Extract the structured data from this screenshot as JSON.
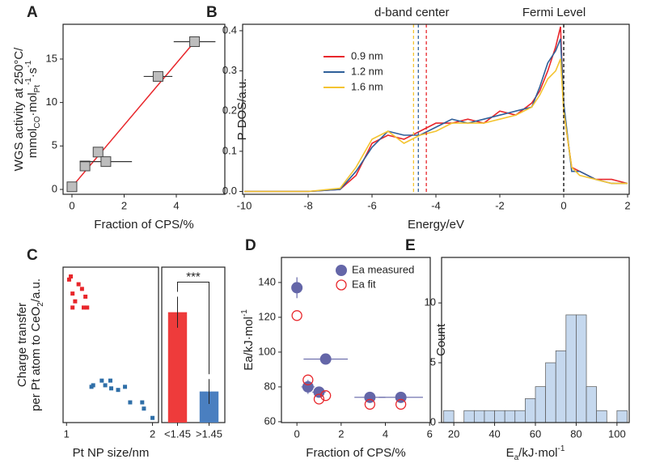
{
  "chart_data": [
    {
      "type": "scatter",
      "panel": "A",
      "xlabel": "Fraction of CPS/%",
      "ylabel": [
        [
          "WGS activity at 250°C/"
        ],
        [
          "mmol",
          "CO",
          "·mol",
          "Pt",
          "-1",
          "·s",
          "-1"
        ]
      ],
      "ylabel_format": [
        [
          ""
        ],
        [
          "",
          "sub",
          "",
          "sub",
          "super",
          "",
          "super"
        ]
      ],
      "x": [
        0,
        0.5,
        1,
        1.3,
        3.3,
        4.7
      ],
      "y": [
        0.3,
        2.7,
        4.3,
        3.2,
        13,
        17
      ],
      "xerr": [
        null,
        null,
        null,
        1.0,
        0.55,
        0.8
      ],
      "color": "#bdbdbd",
      "fit": {
        "x": [
          0,
          4.7
        ],
        "y": [
          0.3,
          17
        ],
        "color": "#e8262b"
      },
      "xlim": [
        -0.34,
        5.86
      ],
      "ylim": [
        -0.56,
        19
      ],
      "xticks": [
        0,
        2,
        4
      ],
      "yticks": [
        0,
        5,
        10,
        15
      ]
    },
    {
      "type": "line",
      "panel": "B",
      "xlabel": "Energy/eV",
      "ylabel": "P-DOS/a.u.",
      "x": [
        -10,
        -9,
        -8,
        -7,
        -6.5,
        -6,
        -5.5,
        -5,
        -4.5,
        -4,
        -3.5,
        -3,
        -2.5,
        -2,
        -1.5,
        -1,
        -0.75,
        -0.5,
        -0.25,
        -0.1,
        0,
        0.25,
        0.5,
        1,
        1.5,
        2
      ],
      "series": [
        {
          "name": "0.9 nm",
          "color": "#e8262b",
          "values": [
            0,
            0,
            0,
            0.005,
            0.04,
            0.12,
            0.14,
            0.13,
            0.15,
            0.17,
            0.17,
            0.18,
            0.17,
            0.2,
            0.19,
            0.22,
            0.25,
            0.3,
            0.36,
            0.41,
            0.2,
            0.06,
            0.05,
            0.03,
            0.03,
            0.02
          ]
        },
        {
          "name": "1.2 nm",
          "color": "#2f5f99",
          "values": [
            0,
            0,
            0,
            0.005,
            0.05,
            0.11,
            0.15,
            0.14,
            0.14,
            0.16,
            0.18,
            0.17,
            0.18,
            0.19,
            0.2,
            0.21,
            0.26,
            0.32,
            0.35,
            0.38,
            0.22,
            0.05,
            0.05,
            0.03,
            0.02,
            0.02
          ]
        },
        {
          "name": "1.6 nm",
          "color": "#f4c430",
          "values": [
            0,
            0,
            0,
            0.008,
            0.06,
            0.13,
            0.15,
            0.12,
            0.14,
            0.15,
            0.17,
            0.17,
            0.17,
            0.18,
            0.19,
            0.21,
            0.24,
            0.28,
            0.3,
            0.33,
            0.2,
            0.06,
            0.04,
            0.03,
            0.02,
            0.02
          ]
        }
      ],
      "vlines": [
        {
          "x": -4.3,
          "color": "#e8262b"
        },
        {
          "x": -4.55,
          "color": "#2f5f99"
        },
        {
          "x": -4.7,
          "color": "#f4c430"
        },
        {
          "x": 0,
          "color": "#000000"
        }
      ],
      "annotations": [
        "d-band center",
        "Fermi Level"
      ],
      "xlim": [
        -10.05,
        2.05
      ],
      "ylim": [
        -0.007,
        0.416
      ],
      "xticks": [
        -10,
        -8,
        -6,
        -4,
        -2,
        0,
        2
      ],
      "yticks": [
        {
          "value": 0,
          "label": "0.0"
        },
        0.1,
        0.2,
        0.3,
        0.4
      ]
    },
    {
      "type": "scatter",
      "panel": "C",
      "xlabel": "Pt NP size/nm",
      "ylabel": [
        [
          "Charge transfer"
        ],
        [
          "per Pt atom to CeO",
          "2",
          "/a.u."
        ]
      ],
      "ylabel_format": [
        [
          ""
        ],
        [
          "",
          "sub",
          ""
        ]
      ],
      "series": [
        {
          "color": "#e8262b",
          "x": [
            1.05,
            1.03,
            1.14,
            1.18,
            1.07,
            1.22,
            1.1,
            1.07,
            1.2,
            1.24
          ],
          "y": [
            0.94,
            0.92,
            0.89,
            0.86,
            0.83,
            0.81,
            0.78,
            0.74,
            0.74,
            0.74
          ]
        },
        {
          "color": "#2f6fa8",
          "x": [
            1.29,
            1.31,
            1.41,
            1.45,
            1.51,
            1.52,
            1.6,
            1.68,
            1.74,
            1.88,
            1.9,
            2.0
          ],
          "y": [
            0.23,
            0.24,
            0.27,
            0.24,
            0.27,
            0.22,
            0.21,
            0.23,
            0.13,
            0.13,
            0.09,
            0.03
          ]
        }
      ],
      "xlim": [
        0.96,
        2.07
      ],
      "ylim": [
        0,
        1
      ],
      "xticks": [
        1,
        2
      ]
    },
    {
      "type": "bar",
      "categories": [
        "<1.45",
        ">1.45"
      ],
      "values": [
        0.71,
        0.2
      ],
      "errors": [
        0.1,
        0.08
      ],
      "colors": [
        "#ee3b3b",
        "#4a7fc0"
      ],
      "annotation": "***",
      "ylim": [
        0,
        1
      ]
    },
    {
      "type": "scatter",
      "panel": "D",
      "xlabel": "Fraction of CPS/%",
      "ylabel": [
        [
          "Ea/kJ·mol",
          "-1"
        ]
      ],
      "ylabel_format": [
        [
          "",
          "super"
        ]
      ],
      "series": [
        {
          "name": "Ea measured",
          "color": "#6466a8",
          "marker": "filled",
          "x": [
            0,
            0.5,
            1,
            1.3,
            3.3,
            4.7
          ],
          "y": [
            137,
            80,
            77,
            96,
            74,
            74
          ],
          "xerr": [
            null,
            0.3,
            0.3,
            1.0,
            0.7,
            1.0
          ],
          "yerr": [
            6,
            4,
            null,
            null,
            null,
            null
          ]
        },
        {
          "name": "Ea fit",
          "color": "#e8262b",
          "marker": "open",
          "x": [
            0,
            0.5,
            1,
            1.3,
            3.3,
            4.7
          ],
          "y": [
            121,
            84,
            73,
            75,
            70,
            70
          ]
        }
      ],
      "legend": "upper right",
      "xlim": [
        -0.7,
        6.03
      ],
      "ylim": [
        59.5,
        154.4
      ],
      "xticks": [
        0,
        2,
        4,
        6
      ],
      "yticks": [
        60,
        80,
        100,
        120,
        140
      ]
    },
    {
      "type": "histogram",
      "panel": "E",
      "xlabel": [
        [
          "E",
          "a",
          "/kJ·mol",
          "-1"
        ]
      ],
      "xlabel_format": [
        [
          "",
          "sub",
          "",
          "super"
        ]
      ],
      "ylabel": "Count",
      "bins": [
        15,
        20,
        25,
        30,
        35,
        40,
        45,
        50,
        55,
        60,
        65,
        70,
        75,
        80,
        85,
        90,
        95,
        100,
        105
      ],
      "counts": [
        1,
        0,
        1,
        1,
        1,
        1,
        1,
        1,
        2,
        3,
        5,
        6,
        9,
        9,
        3,
        1,
        0,
        1
      ],
      "color": "#c5d8ee",
      "xlim": [
        14,
        106
      ],
      "ylim": [
        0,
        13.8
      ],
      "xticks": [
        20,
        40,
        60,
        80,
        100
      ],
      "yticks": [
        0,
        5,
        10
      ]
    }
  ]
}
